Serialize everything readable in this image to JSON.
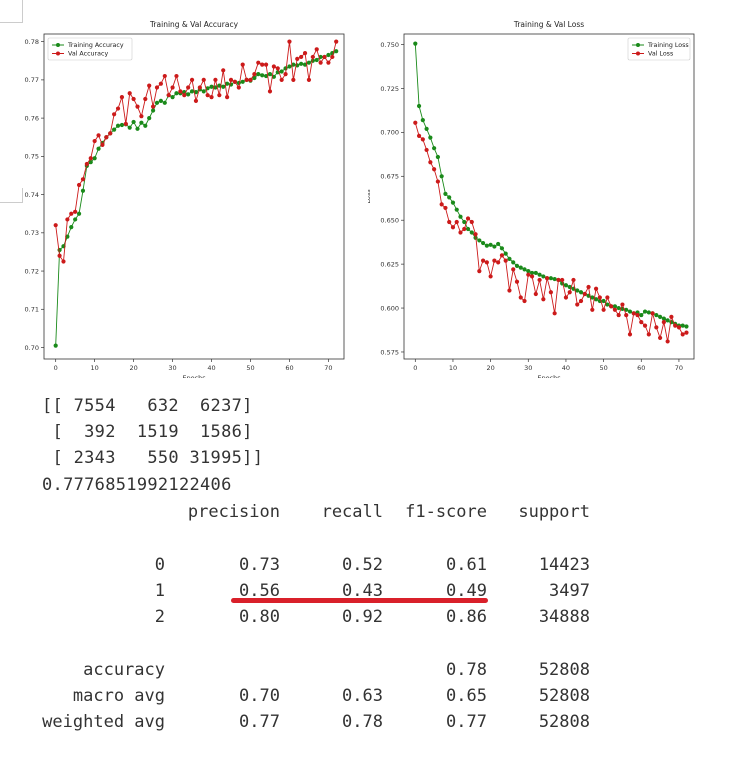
{
  "chart_data": [
    {
      "type": "line",
      "title": "Training & Val Accuracy",
      "xlabel": "Epochs",
      "ylabel": "",
      "xlim": [
        -3,
        74
      ],
      "ylim": [
        0.697,
        0.782
      ],
      "xticks": [
        0,
        10,
        20,
        30,
        40,
        50,
        60,
        70
      ],
      "yticks": [
        0.7,
        0.71,
        0.72,
        0.73,
        0.74,
        0.75,
        0.76,
        0.77,
        0.78
      ],
      "legend_position": "top-left",
      "grid": false,
      "series": [
        {
          "name": "Training Accuracy",
          "color": "#1a8a1a",
          "values": [
            0.7005,
            0.7255,
            0.7265,
            0.729,
            0.7315,
            0.7335,
            0.735,
            0.741,
            0.7475,
            0.7485,
            0.7495,
            0.752,
            0.7535,
            0.755,
            0.756,
            0.757,
            0.758,
            0.7582,
            0.7584,
            0.7575,
            0.759,
            0.7572,
            0.7588,
            0.758,
            0.76,
            0.762,
            0.764,
            0.7645,
            0.764,
            0.766,
            0.7655,
            0.7665,
            0.7665,
            0.7668,
            0.7662,
            0.767,
            0.7668,
            0.7675,
            0.767,
            0.7678,
            0.7682,
            0.768,
            0.7685,
            0.7682,
            0.769,
            0.7688,
            0.7695,
            0.7692,
            0.7695,
            0.77,
            0.7698,
            0.7705,
            0.7715,
            0.7712,
            0.771,
            0.7715,
            0.7708,
            0.772,
            0.7722,
            0.773,
            0.7735,
            0.774,
            0.7738,
            0.7742,
            0.774,
            0.7745,
            0.775,
            0.7752,
            0.776,
            0.776,
            0.7765,
            0.777,
            0.7775
          ]
        },
        {
          "name": "Val Accuracy",
          "color": "#cc1a1a",
          "values": [
            0.732,
            0.724,
            0.7225,
            0.7335,
            0.735,
            0.7355,
            0.7425,
            0.744,
            0.748,
            0.7495,
            0.754,
            0.7555,
            0.753,
            0.755,
            0.756,
            0.761,
            0.7625,
            0.7655,
            0.7585,
            0.7665,
            0.765,
            0.763,
            0.7605,
            0.765,
            0.7685,
            0.763,
            0.768,
            0.769,
            0.771,
            0.766,
            0.768,
            0.771,
            0.767,
            0.766,
            0.768,
            0.77,
            0.7645,
            0.768,
            0.77,
            0.766,
            0.7655,
            0.77,
            0.766,
            0.7725,
            0.7655,
            0.77,
            0.7695,
            0.768,
            0.774,
            0.77,
            0.77,
            0.7715,
            0.7745,
            0.774,
            0.774,
            0.767,
            0.7735,
            0.773,
            0.77,
            0.7715,
            0.78,
            0.77,
            0.7755,
            0.776,
            0.777,
            0.77,
            0.776,
            0.778,
            0.7745,
            0.776,
            0.7745,
            0.776,
            0.78
          ]
        }
      ]
    },
    {
      "type": "line",
      "title": "Training & Val Loss",
      "xlabel": "Epochs",
      "ylabel": "Loss",
      "xlim": [
        -3,
        74
      ],
      "ylim": [
        0.571,
        0.756
      ],
      "xticks": [
        0,
        10,
        20,
        30,
        40,
        50,
        60,
        70
      ],
      "yticks": [
        0.575,
        0.6,
        0.625,
        0.65,
        0.675,
        0.7,
        0.725,
        0.75
      ],
      "legend_position": "top-right",
      "grid": false,
      "series": [
        {
          "name": "Training Loss",
          "color": "#1a8a1a",
          "values": [
            0.7505,
            0.715,
            0.707,
            0.702,
            0.697,
            0.691,
            0.686,
            0.675,
            0.665,
            0.663,
            0.66,
            0.656,
            0.652,
            0.649,
            0.645,
            0.643,
            0.64,
            0.6385,
            0.637,
            0.6355,
            0.636,
            0.635,
            0.6365,
            0.634,
            0.631,
            0.628,
            0.626,
            0.624,
            0.623,
            0.622,
            0.621,
            0.62,
            0.62,
            0.619,
            0.618,
            0.617,
            0.617,
            0.6165,
            0.616,
            0.614,
            0.613,
            0.612,
            0.611,
            0.61,
            0.609,
            0.608,
            0.607,
            0.606,
            0.605,
            0.604,
            0.604,
            0.602,
            0.601,
            0.601,
            0.6,
            0.5995,
            0.599,
            0.598,
            0.597,
            0.5975,
            0.596,
            0.598,
            0.5975,
            0.597,
            0.596,
            0.595,
            0.594,
            0.593,
            0.592,
            0.591,
            0.59,
            0.59,
            0.5895
          ]
        },
        {
          "name": "Val Loss",
          "color": "#cc1a1a",
          "values": [
            0.7055,
            0.698,
            0.696,
            0.69,
            0.683,
            0.679,
            0.672,
            0.659,
            0.657,
            0.649,
            0.646,
            0.649,
            0.643,
            0.645,
            0.651,
            0.649,
            0.642,
            0.621,
            0.627,
            0.626,
            0.618,
            0.627,
            0.626,
            0.63,
            0.627,
            0.61,
            0.622,
            0.615,
            0.606,
            0.604,
            0.619,
            0.618,
            0.608,
            0.616,
            0.605,
            0.617,
            0.609,
            0.597,
            0.616,
            0.616,
            0.606,
            0.609,
            0.616,
            0.602,
            0.604,
            0.608,
            0.612,
            0.599,
            0.611,
            0.606,
            0.599,
            0.606,
            0.601,
            0.599,
            0.596,
            0.602,
            0.596,
            0.585,
            0.597,
            0.596,
            0.592,
            0.59,
            0.585,
            0.597,
            0.589,
            0.583,
            0.592,
            0.581,
            0.595,
            0.59,
            0.589,
            0.585,
            0.586
          ]
        }
      ]
    }
  ],
  "output": {
    "confusion_matrix_lines": [
      "[[ 7554   632  6237]",
      " [  392  1519  1586]",
      " [ 2343   550 31995]]"
    ],
    "accuracy_value": "0.7776851992122406"
  },
  "report": {
    "headers": [
      "precision",
      "recall",
      "f1-score",
      "support"
    ],
    "rows": [
      {
        "label": "0",
        "precision": "0.73",
        "recall": "0.52",
        "f1": "0.61",
        "support": "14423"
      },
      {
        "label": "1",
        "precision": "0.56",
        "recall": "0.43",
        "f1": "0.49",
        "support": "3497"
      },
      {
        "label": "2",
        "precision": "0.80",
        "recall": "0.92",
        "f1": "0.86",
        "support": "34888"
      }
    ],
    "summary": [
      {
        "label": "accuracy",
        "precision": "",
        "recall": "",
        "f1": "0.78",
        "support": "52808"
      },
      {
        "label": "macro avg",
        "precision": "0.70",
        "recall": "0.63",
        "f1": "0.65",
        "support": "52808"
      },
      {
        "label": "weighted avg",
        "precision": "0.77",
        "recall": "0.78",
        "f1": "0.77",
        "support": "52808"
      }
    ],
    "highlight_color": "#d9202a"
  }
}
